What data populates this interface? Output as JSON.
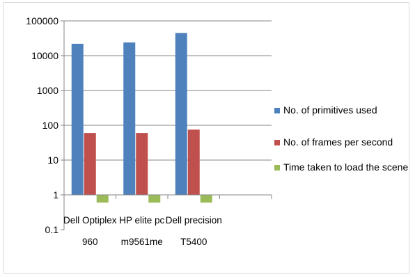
{
  "chart_data": {
    "type": "bar",
    "title": "",
    "xlabel": "",
    "ylabel": "",
    "yscale": "log",
    "ylim": [
      0.1,
      100000
    ],
    "yticks": [
      "100000",
      "10000",
      "1000",
      "100",
      "10",
      "1",
      "0.1"
    ],
    "categories": [
      [
        "Dell Optiplex",
        "960"
      ],
      [
        "HP elite pc",
        "m9561me"
      ],
      [
        "Dell precision",
        "T5400"
      ]
    ],
    "series": [
      {
        "name": "No. of primitives used",
        "color": "#4f81bd",
        "values": [
          22000,
          24000,
          45000
        ]
      },
      {
        "name": "No. of frames per second",
        "color": "#c0504d",
        "values": [
          60,
          60,
          75
        ]
      },
      {
        "name": "Time taken to load the scene",
        "color": "#9bbb59",
        "values": [
          0.6,
          0.6,
          0.6
        ]
      }
    ],
    "grid": true,
    "legend_position": "right"
  }
}
